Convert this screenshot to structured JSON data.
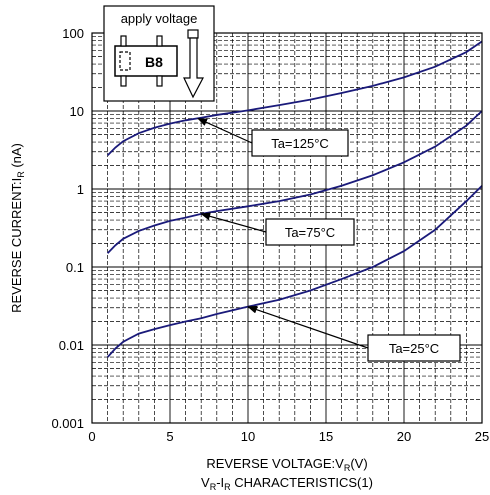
{
  "chart_data": {
    "type": "line",
    "x_scale": "linear",
    "y_scale": "log",
    "xlim": [
      0,
      25
    ],
    "ylim": [
      0.001,
      100
    ],
    "x_ticks": [
      "0",
      "5",
      "10",
      "15",
      "20",
      "25"
    ],
    "y_ticks": [
      "0.001",
      "0.01",
      "0.1",
      "1",
      "10",
      "100"
    ],
    "xlabel_main": "REVERSE VOLTAGE",
    "xlabel_colon": ":",
    "xlabel_sym": "V",
    "xlabel_sub": "R",
    "xlabel_unit": "(V)",
    "ylabel_main": "REVERSE CURRENT",
    "ylabel_colon": ":",
    "ylabel_sym": "I",
    "ylabel_sub": "R",
    "ylabel_unit": " (nA)",
    "caption_sym": "V",
    "caption_sub": "R",
    "caption_rest": "-I",
    "caption_sub2": "R",
    "caption_tail": " CHARACTERISTICS(1)",
    "grid": true,
    "series": [
      {
        "name": "Ta=125°C",
        "x": [
          1,
          1.5,
          2,
          3,
          4,
          5,
          6,
          7,
          8,
          10,
          12,
          14,
          16,
          18,
          20,
          22,
          24,
          25
        ],
        "y": [
          2.7,
          3.4,
          4.1,
          5.2,
          6.1,
          6.9,
          7.6,
          8.2,
          8.9,
          10.2,
          11.9,
          14.0,
          17.0,
          21.0,
          27.0,
          37.0,
          57.0,
          78.0
        ]
      },
      {
        "name": "Ta=75°C",
        "x": [
          1,
          1.5,
          2,
          3,
          4,
          5,
          6,
          7,
          8,
          10,
          12,
          14,
          16,
          18,
          20,
          22,
          24,
          25
        ],
        "y": [
          0.15,
          0.19,
          0.23,
          0.29,
          0.34,
          0.39,
          0.43,
          0.48,
          0.52,
          0.6,
          0.7,
          0.85,
          1.1,
          1.5,
          2.2,
          3.5,
          6.5,
          10.0
        ]
      },
      {
        "name": "Ta=25°C",
        "x": [
          1,
          1.5,
          2,
          3,
          4,
          5,
          6,
          7,
          8,
          10,
          12,
          14,
          16,
          18,
          20,
          22,
          24,
          25
        ],
        "y": [
          0.007,
          0.009,
          0.011,
          0.014,
          0.016,
          0.018,
          0.02,
          0.022,
          0.025,
          0.031,
          0.038,
          0.05,
          0.07,
          0.1,
          0.16,
          0.3,
          0.7,
          1.1
        ]
      }
    ],
    "annotations": [
      {
        "text": "Ta=125°C",
        "target_x": 6.8,
        "target_y": 8.0
      },
      {
        "text": "Ta=75°C",
        "target_x": 7.0,
        "target_y": 0.48
      },
      {
        "text": "Ta=25°C",
        "target_x": 10.0,
        "target_y": 0.031
      }
    ],
    "inset": {
      "label": "apply voltage",
      "marking": "B8",
      "icon": "arrow-down-icon"
    }
  }
}
